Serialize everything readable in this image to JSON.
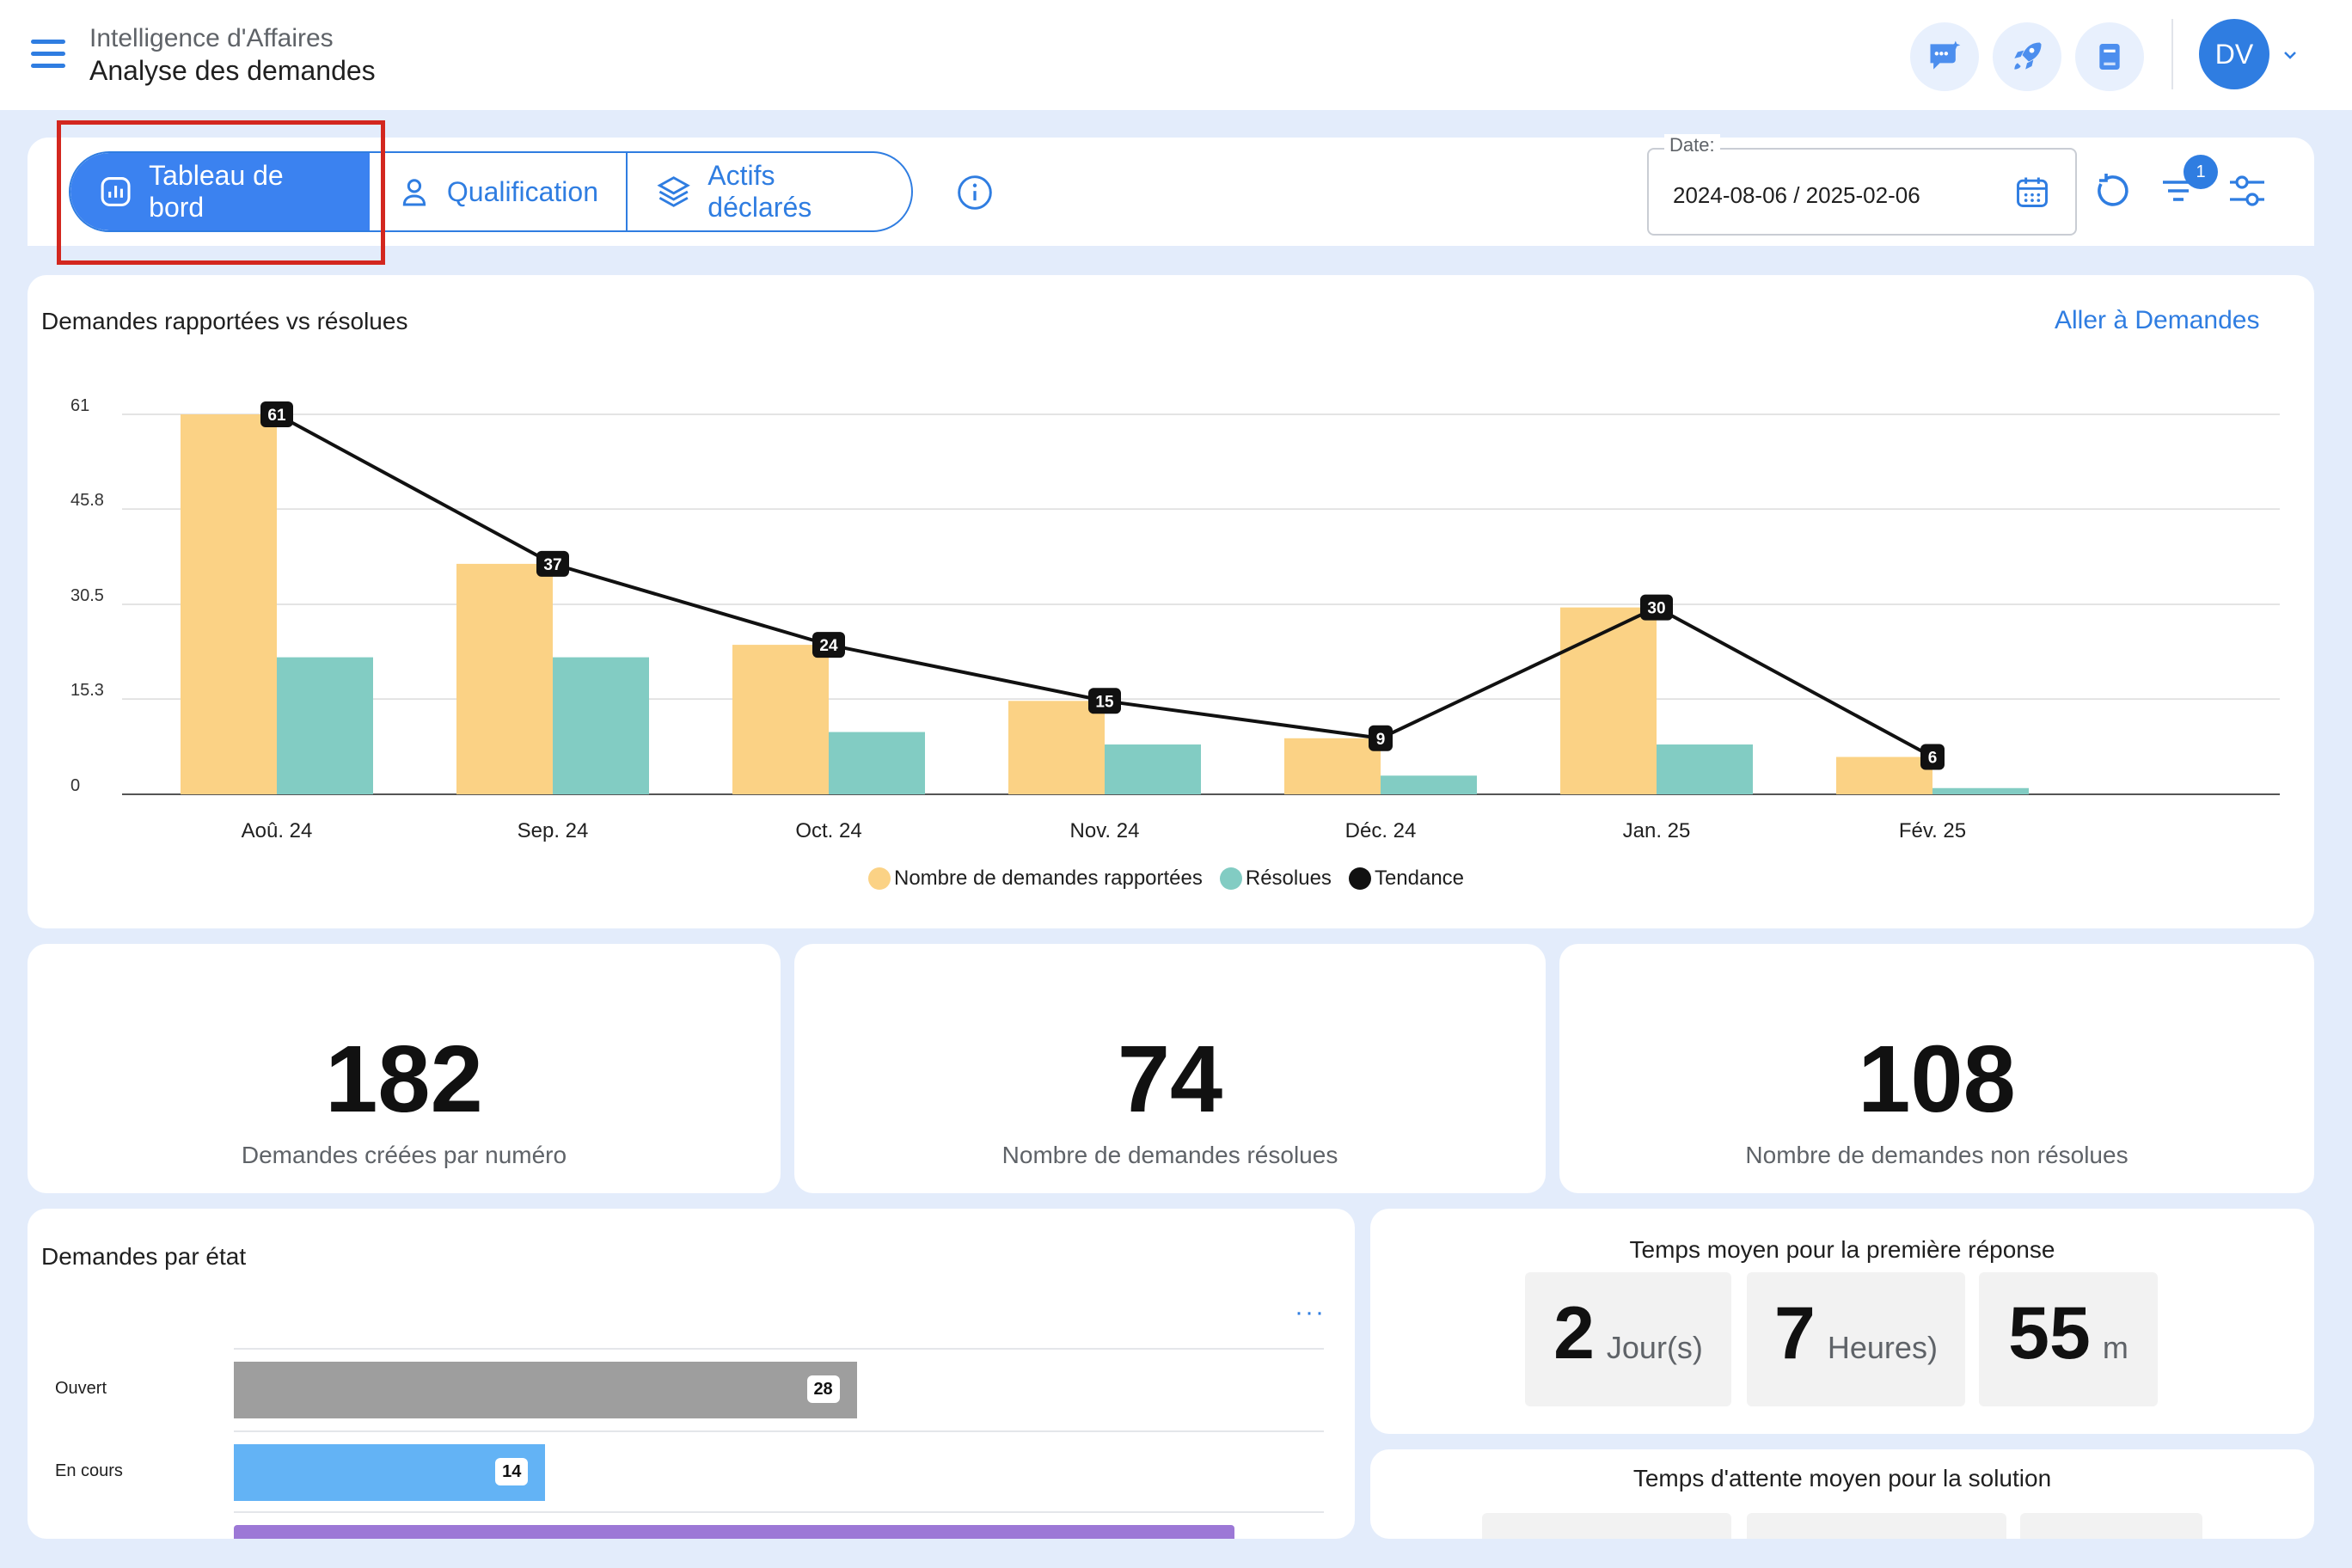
{
  "header": {
    "breadcrumb_parent": "Intelligence d'Affaires",
    "page_title": "Analyse des demandes",
    "avatar_initials": "DV",
    "icons": [
      "menu-icon",
      "chat-ai-icon",
      "rocket-icon",
      "book-icon",
      "chevron-down-icon"
    ]
  },
  "tabs": [
    {
      "label": "Tableau de bord",
      "icon": "chart-icon",
      "active": true
    },
    {
      "label": "Qualification",
      "icon": "person-icon",
      "active": false
    },
    {
      "label": "Actifs déclarés",
      "icon": "layers-icon",
      "active": false
    }
  ],
  "filters": {
    "date_label": "Date:",
    "date_value": "2024-08-06 / 2025-02-06",
    "filter_badge_count": "1"
  },
  "colors": {
    "accent": "#2f7de1",
    "reported": "#fbd285",
    "resolved": "#82ccc3",
    "trend": "#111111",
    "open": "#9e9e9e",
    "in_progress": "#63b3f5",
    "third_state": "#9c78d6",
    "highlight": "#d3271f"
  },
  "main_chart": {
    "title": "Demandes rapportées vs résolues",
    "link": "Aller à Demandes",
    "tools": [
      "zoom-in-icon",
      "zoom-out-icon",
      "pan-hand-icon",
      "reset-zoom-icon",
      "more-icon"
    ]
  },
  "chart_data": {
    "type": "bar",
    "categories": [
      "Aoû. 24",
      "Sep. 24",
      "Oct. 24",
      "Nov. 24",
      "Déc. 24",
      "Jan. 25",
      "Fév. 25"
    ],
    "y_ticks": [
      "0",
      "15.3",
      "30.5",
      "45.8",
      "61"
    ],
    "ylim": [
      0,
      61
    ],
    "series": [
      {
        "name": "Nombre de demandes rapportées",
        "type": "bar",
        "values": [
          61,
          37,
          24,
          15,
          9,
          30,
          6
        ]
      },
      {
        "name": "Résolues",
        "type": "bar",
        "values": [
          22,
          22,
          10,
          8,
          3,
          8,
          1
        ]
      },
      {
        "name": "Tendance",
        "type": "line",
        "values": [
          61,
          37,
          24,
          15,
          9,
          30,
          6
        ]
      }
    ],
    "legend_position": "bottom",
    "grid": true
  },
  "kpis": [
    {
      "value": "182",
      "label": "Demandes créées par numéro"
    },
    {
      "value": "74",
      "label": "Nombre de demandes résolues"
    },
    {
      "value": "108",
      "label": "Nombre de demandes non résolues"
    }
  ],
  "state_chart": {
    "title": "Demandes par état",
    "menu": "···",
    "rows": [
      {
        "label": "Ouvert",
        "value": 28,
        "value_text": "28"
      },
      {
        "label": "En cours",
        "value": 14,
        "value_text": "14"
      },
      {
        "label": "",
        "value": 45,
        "value_text": ""
      }
    ],
    "max": 49
  },
  "first_response": {
    "title": "Temps moyen pour la première réponse",
    "parts": [
      {
        "num": "2",
        "unit": "Jour(s)"
      },
      {
        "num": "7",
        "unit": "Heures)"
      },
      {
        "num": "55",
        "unit": "m"
      }
    ]
  },
  "solution_wait": {
    "title": "Temps d'attente moyen pour la solution"
  }
}
